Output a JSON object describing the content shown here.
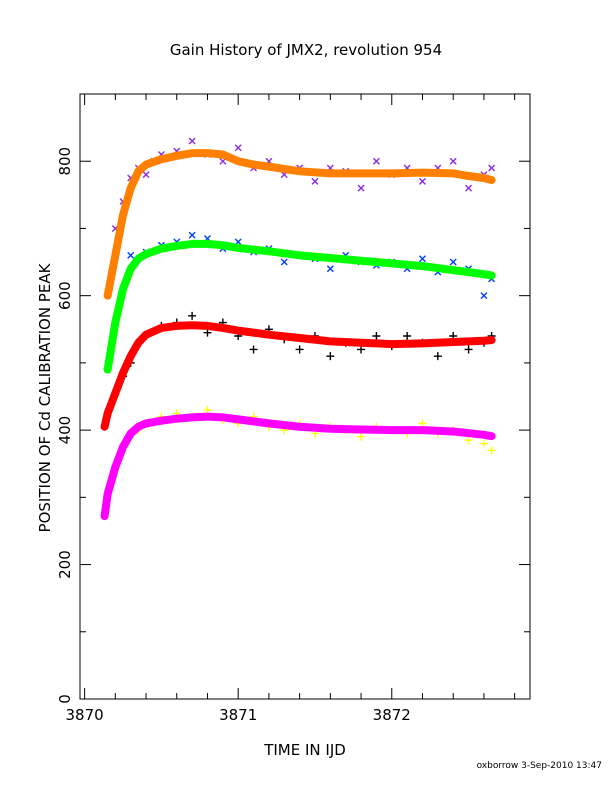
{
  "chart_data": {
    "type": "scatter",
    "title": "Gain History of JMX2, revolution 954",
    "xlabel": "TIME IN IJD",
    "ylabel": "POSITION OF Cd CALIBRATION PEAK",
    "xlim": [
      3869.97,
      3872.9
    ],
    "ylim": [
      0,
      900
    ],
    "xticks": [
      3870,
      3871,
      3872
    ],
    "yticks": [
      0,
      200,
      400,
      600,
      800
    ],
    "grid": false,
    "footer": "oxborrow  3-Sep-2010 13:47",
    "series": [
      {
        "marker": "x",
        "color": "#8b2be2",
        "x": [
          3870.2,
          3870.25,
          3870.3,
          3870.35,
          3870.4,
          3870.45,
          3870.5,
          3870.6,
          3870.7,
          3870.8,
          3870.9,
          3871.0,
          3871.1,
          3871.2,
          3871.3,
          3871.4,
          3871.5,
          3871.6,
          3871.7,
          3871.8,
          3871.9,
          3872.0,
          3872.1,
          3872.2,
          3872.3,
          3872.4,
          3872.5,
          3872.6,
          3872.65
        ],
        "y": [
          700,
          740,
          775,
          790,
          780,
          800,
          810,
          815,
          830,
          810,
          800,
          820,
          790,
          800,
          780,
          790,
          770,
          790,
          785,
          760,
          800,
          780,
          790,
          770,
          790,
          800,
          760,
          780,
          790
        ]
      },
      {
        "marker": "thick-line",
        "color": "#ff8000",
        "x": [
          3870.15,
          3870.2,
          3870.25,
          3870.3,
          3870.35,
          3870.4,
          3870.5,
          3870.6,
          3870.7,
          3870.8,
          3870.9,
          3871.0,
          3871.1,
          3871.2,
          3871.4,
          3871.6,
          3871.8,
          3872.0,
          3872.2,
          3872.4,
          3872.5,
          3872.6,
          3872.65
        ],
        "y": [
          600,
          660,
          720,
          760,
          785,
          795,
          803,
          808,
          812,
          812,
          810,
          800,
          795,
          792,
          785,
          782,
          782,
          782,
          783,
          782,
          778,
          775,
          772
        ]
      },
      {
        "marker": "x",
        "color": "#0040ff",
        "x": [
          3870.3,
          3870.4,
          3870.5,
          3870.6,
          3870.7,
          3870.8,
          3870.9,
          3871.0,
          3871.1,
          3871.2,
          3871.3,
          3871.4,
          3871.5,
          3871.6,
          3871.7,
          3871.8,
          3871.9,
          3872.0,
          3872.1,
          3872.2,
          3872.3,
          3872.4,
          3872.5,
          3872.6,
          3872.65
        ],
        "y": [
          660,
          665,
          675,
          680,
          690,
          685,
          670,
          680,
          665,
          670,
          650,
          660,
          655,
          640,
          660,
          650,
          645,
          650,
          640,
          655,
          635,
          650,
          640,
          600,
          625
        ]
      },
      {
        "marker": "thick-line",
        "color": "#00ff00",
        "x": [
          3870.15,
          3870.2,
          3870.25,
          3870.3,
          3870.35,
          3870.4,
          3870.5,
          3870.6,
          3870.7,
          3870.8,
          3870.9,
          3871.0,
          3871.2,
          3871.4,
          3871.6,
          3871.8,
          3872.0,
          3872.2,
          3872.4,
          3872.5,
          3872.6,
          3872.65
        ],
        "y": [
          490,
          560,
          610,
          640,
          655,
          662,
          670,
          674,
          677,
          677,
          675,
          671,
          666,
          660,
          656,
          652,
          648,
          644,
          638,
          635,
          632,
          630
        ]
      },
      {
        "marker": "plus",
        "color": "#000000",
        "x": [
          3870.25,
          3870.3,
          3870.35,
          3870.4,
          3870.5,
          3870.6,
          3870.7,
          3870.8,
          3870.9,
          3871.0,
          3871.1,
          3871.2,
          3871.3,
          3871.4,
          3871.5,
          3871.6,
          3871.7,
          3871.8,
          3871.9,
          3872.0,
          3872.1,
          3872.2,
          3872.3,
          3872.4,
          3872.5,
          3872.6,
          3872.65
        ],
        "y": [
          480,
          500,
          530,
          540,
          555,
          560,
          570,
          545,
          560,
          540,
          520,
          550,
          535,
          520,
          540,
          510,
          530,
          520,
          540,
          525,
          540,
          530,
          510,
          540,
          520,
          530,
          540
        ]
      },
      {
        "marker": "thick-line",
        "color": "#ff0000",
        "x": [
          3870.13,
          3870.15,
          3870.2,
          3870.25,
          3870.3,
          3870.35,
          3870.4,
          3870.5,
          3870.6,
          3870.7,
          3870.8,
          3870.9,
          3871.0,
          3871.2,
          3871.4,
          3871.6,
          3871.8,
          3872.0,
          3872.2,
          3872.4,
          3872.6,
          3872.65
        ],
        "y": [
          405,
          425,
          455,
          485,
          510,
          530,
          542,
          552,
          555,
          556,
          555,
          552,
          548,
          542,
          537,
          532,
          530,
          528,
          529,
          531,
          533,
          534
        ]
      },
      {
        "marker": "plus",
        "color": "#ffff00",
        "x": [
          3870.35,
          3870.4,
          3870.5,
          3870.6,
          3870.7,
          3870.8,
          3870.9,
          3871.0,
          3871.1,
          3871.2,
          3871.3,
          3871.4,
          3871.5,
          3871.6,
          3871.7,
          3871.8,
          3871.9,
          3872.0,
          3872.1,
          3872.2,
          3872.3,
          3872.4,
          3872.5,
          3872.6,
          3872.65
        ],
        "y": [
          400,
          410,
          420,
          425,
          420,
          430,
          415,
          410,
          420,
          405,
          400,
          410,
          395,
          405,
          400,
          390,
          405,
          400,
          395,
          410,
          395,
          400,
          385,
          380,
          370
        ]
      },
      {
        "marker": "thick-line",
        "color": "#ff00ff",
        "x": [
          3870.13,
          3870.15,
          3870.2,
          3870.25,
          3870.3,
          3870.35,
          3870.4,
          3870.5,
          3870.6,
          3870.7,
          3870.8,
          3870.9,
          3871.0,
          3871.2,
          3871.4,
          3871.6,
          3871.8,
          3872.0,
          3872.2,
          3872.4,
          3872.6,
          3872.65
        ],
        "y": [
          272,
          305,
          345,
          375,
          395,
          405,
          410,
          414,
          417,
          419,
          420,
          419,
          416,
          410,
          405,
          402,
          401,
          400,
          400,
          398,
          393,
          391
        ]
      }
    ]
  }
}
